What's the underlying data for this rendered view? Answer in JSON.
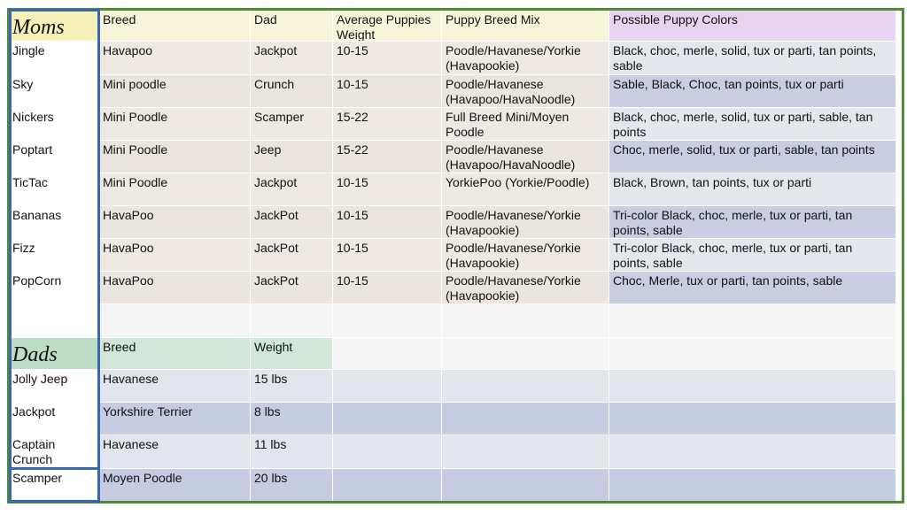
{
  "moms": {
    "title": "Moms",
    "headers": [
      "Breed",
      "Dad",
      "Average Puppies Weight",
      "Puppy Breed Mix",
      "Possible Puppy Colors"
    ],
    "rows": [
      [
        "Jingle",
        "Havapoo",
        "Jackpot",
        "10-15",
        "Poodle/Havanese/Yorkie (Havapookie)",
        "Black, choc, merle, solid, tux or parti, tan points, sable"
      ],
      [
        "Sky",
        "Mini poodle",
        "Crunch",
        "10-15",
        "Poodle/Havanese (Havapoo/HavaNoodle)",
        "Sable, Black, Choc, tan points, tux or parti"
      ],
      [
        "Nickers",
        "Mini Poodle",
        "Scamper",
        "15-22",
        "Full Breed Mini/Moyen Poodle",
        "Black, choc, merle, solid, tux or parti, sable, tan points"
      ],
      [
        "Poptart",
        "Mini Poodle",
        "Jeep",
        "15-22",
        "Poodle/Havanese (Havapoo/HavaNoodle)",
        "Choc, merle, solid, tux or parti, sable, tan points"
      ],
      [
        "TicTac",
        "Mini Poodle",
        "Jackpot",
        "10-15",
        "YorkiePoo (Yorkie/Poodle)",
        "Black, Brown, tan points, tux or parti"
      ],
      [
        "Bananas",
        "HavaPoo",
        "JackPot",
        "10-15",
        "Poodle/Havanese/Yorkie (Havapookie)",
        "Tri-color Black, choc, merle, tux or parti, tan points, sable"
      ],
      [
        "Fizz",
        "HavaPoo",
        "JackPot",
        "10-15",
        "Poodle/Havanese/Yorkie (Havapookie)",
        "Tri-color Black, choc, merle, tux or parti, tan points, sable"
      ],
      [
        "PopCorn",
        "HavaPoo",
        "JackPot",
        "10-15",
        "Poodle/Havanese/Yorkie (Havapookie)",
        "Choc, Merle, tux or parti, tan points, sable"
      ]
    ]
  },
  "dads": {
    "title": "Dads",
    "headers": [
      "Breed",
      "Weight"
    ],
    "rows": [
      [
        "Jolly Jeep",
        "Havanese",
        "15 lbs"
      ],
      [
        "Jackpot",
        "Yorkshire Terrier",
        "8 lbs"
      ],
      [
        "Captain Crunch",
        "Havanese",
        "11 lbs"
      ],
      [
        "Scamper",
        "Moyen Poodle",
        "20 lbs"
      ]
    ]
  }
}
